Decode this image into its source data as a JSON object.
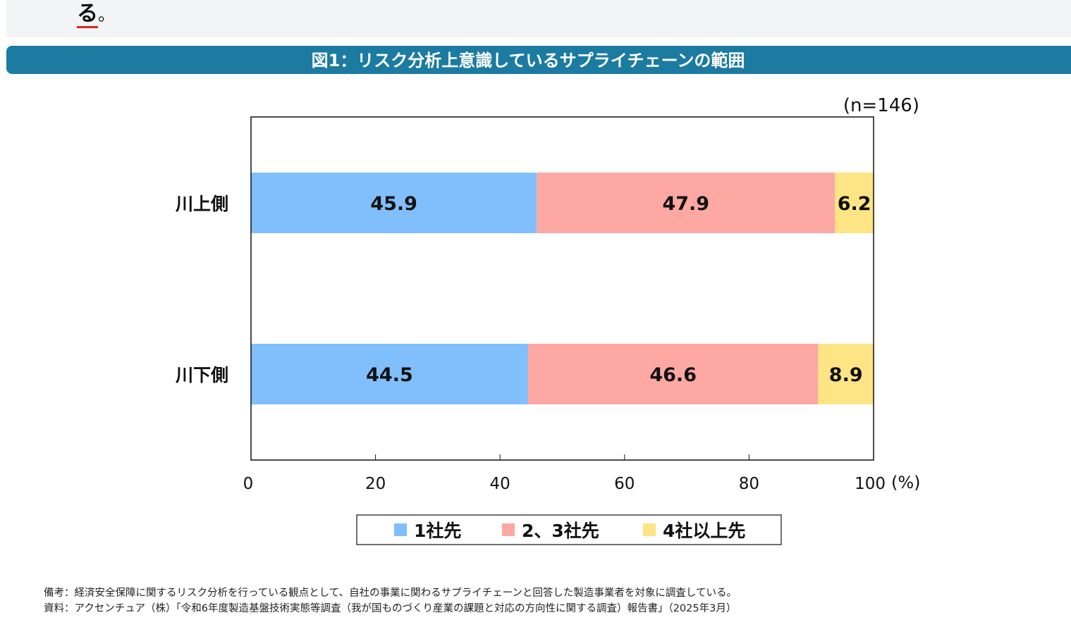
{
  "intro_tail": {
    "char": "る",
    "punct": "。"
  },
  "banner_title": "図1：リスク分析上意識しているサプライチェーンの範囲",
  "chart_data": {
    "type": "bar",
    "orientation": "horizontal",
    "stacked": true,
    "sample_note": "(n=146)",
    "categories": [
      "川上側",
      "川下側"
    ],
    "series": [
      {
        "name": "1社先",
        "values": [
          45.9,
          44.5
        ],
        "color": "#80bffb"
      },
      {
        "name": "2、3社先",
        "values": [
          47.9,
          46.6
        ],
        "color": "#fea8a4"
      },
      {
        "name": "4社以上先",
        "values": [
          6.2,
          8.9
        ],
        "color": "#fde484"
      }
    ],
    "xlim": [
      0,
      100
    ],
    "xticks": [
      "0",
      "20",
      "40",
      "60",
      "80",
      "100"
    ],
    "xunit": "(%)",
    "grid": false,
    "legend": "bottom"
  },
  "notes": [
    "備考：経済安全保障に関するリスク分析を行っている観点として、自社の事業に関わるサプライチェーンと回答した製造事業者を対象に調査している。",
    "資料：アクセンチュア（株）「令和6年度製造基盤技術実態等調査（我が国ものづくり産業の課題と対応の方向性に関する調査）報告書」（2025年3月）"
  ]
}
